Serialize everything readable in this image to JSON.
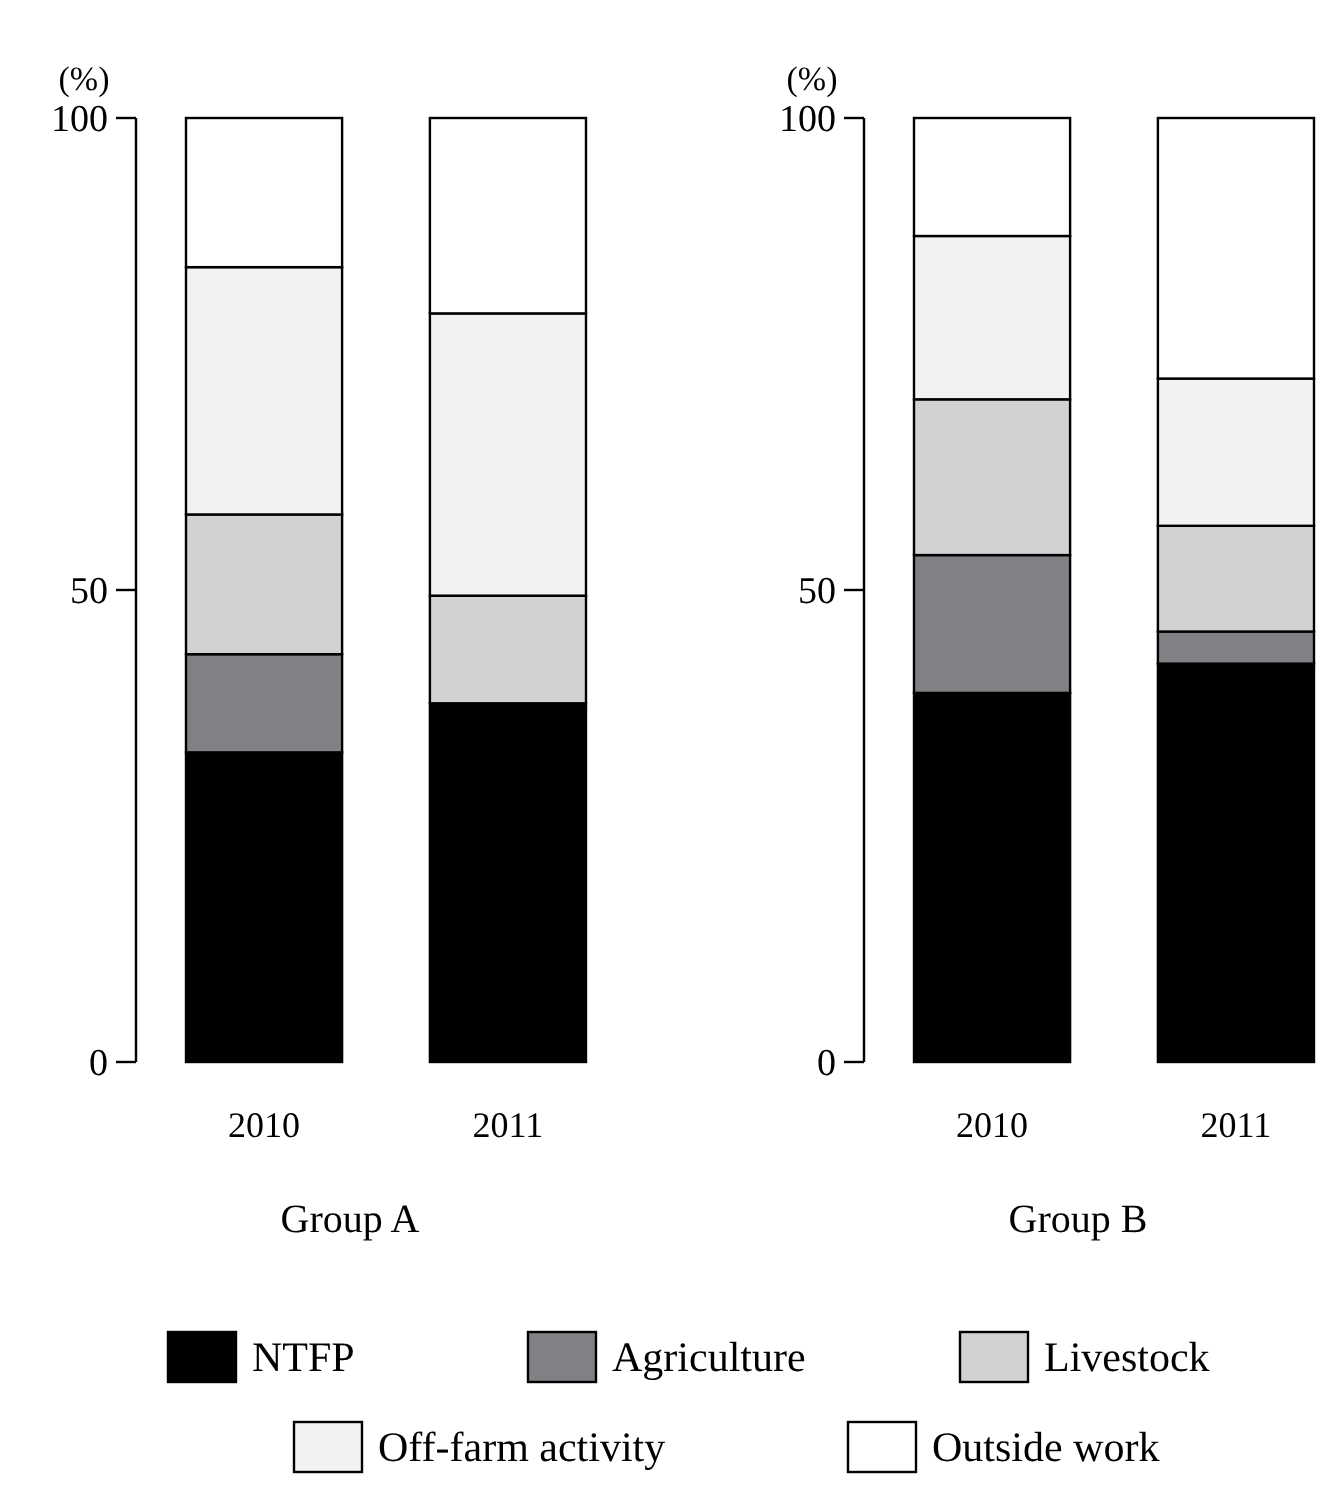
{
  "chart_data": [
    {
      "type": "bar",
      "stacked": true,
      "ylabel": "(%)",
      "xlabel": "Group A",
      "categories": [
        "2010",
        "2011"
      ],
      "ylim": [
        0,
        100
      ],
      "yticks": [
        0,
        50,
        100
      ],
      "grid": false,
      "legend": "bottom",
      "series": [
        {
          "name": "NTFP",
          "color": "#000000",
          "values": [
            32.8,
            38.0
          ]
        },
        {
          "name": "Agriculture",
          "color": "#808184",
          "values": [
            10.4,
            0
          ]
        },
        {
          "name": "Livestock",
          "color": "#d1d2d4",
          "values": [
            14.8,
            11.4
          ]
        },
        {
          "name": "Off-farm activity",
          "color": "#f2f2f2",
          "values": [
            26.2,
            29.9
          ]
        },
        {
          "name": "Outside work",
          "color": "#ffffff",
          "values": [
            15.8,
            20.7
          ]
        }
      ]
    },
    {
      "type": "bar",
      "stacked": true,
      "ylabel": "(%)",
      "xlabel": "Group B",
      "categories": [
        "2010",
        "2011"
      ],
      "ylim": [
        0,
        100
      ],
      "yticks": [
        0,
        50,
        100
      ],
      "grid": false,
      "series": [
        {
          "color": "#000000",
          "values": [
            39.1,
            42.2
          ]
        },
        {
          "color": "#808184",
          "values": [
            14.6,
            3.4
          ]
        },
        {
          "color": "#d1d2d4",
          "values": [
            16.5,
            11.2
          ]
        },
        {
          "color": "#f2f2f2",
          "values": [
            17.3,
            15.6
          ]
        },
        {
          "color": "#ffffff",
          "values": [
            12.5,
            27.6
          ]
        }
      ]
    }
  ]
}
